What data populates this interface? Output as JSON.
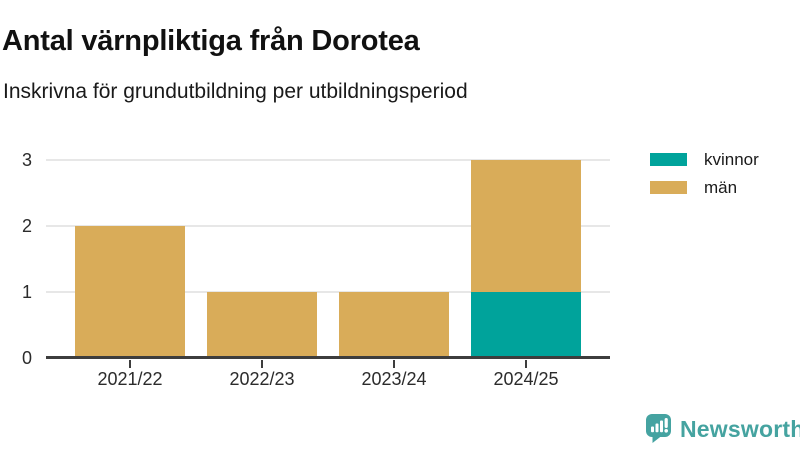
{
  "chart_data": {
    "type": "bar",
    "stacked": true,
    "title": "Antal värnpliktiga från Dorotea",
    "subtitle": "Inskrivna för grundutbildning per utbildningsperiod",
    "categories": [
      "2021/22",
      "2022/23",
      "2023/24",
      "2024/25"
    ],
    "series": [
      {
        "name": "kvinnor",
        "color": "#00a39b",
        "values": [
          0,
          0,
          0,
          1
        ]
      },
      {
        "name": "män",
        "color": "#d9ac59",
        "values": [
          2,
          1,
          1,
          2
        ]
      }
    ],
    "ylim": [
      0,
      3
    ],
    "yticks": [
      0,
      1,
      2,
      3
    ],
    "grid": true,
    "legend_position": "top-right",
    "xlabel": "",
    "ylabel": ""
  },
  "branding": {
    "logo_text": "Newsworthy",
    "logo_color": "#45a3a1",
    "logo_icon": "newsworthy-speech-bubble-barchart-icon"
  }
}
